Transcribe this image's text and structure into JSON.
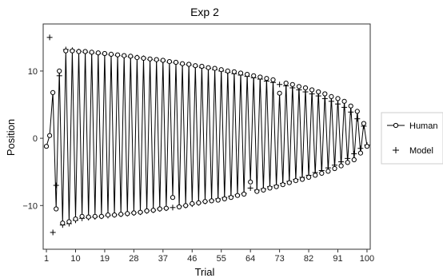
{
  "chart_data": {
    "type": "line",
    "title": "Exp 2",
    "xlabel": "Trial",
    "ylabel": "Position",
    "xlim": [
      0,
      101
    ],
    "ylim": [
      -16.5,
      17
    ],
    "x_ticks": [
      1,
      10,
      19,
      28,
      37,
      46,
      55,
      64,
      73,
      82,
      91,
      100
    ],
    "y_ticks": [
      -10,
      0,
      10
    ],
    "y_tick_labels": [
      "−10",
      "0",
      "10"
    ],
    "grid": false,
    "legend": {
      "placement": "right",
      "items": [
        {
          "label": "Human",
          "marker": "circle-line"
        },
        {
          "label": "Model",
          "marker": "plus"
        }
      ]
    },
    "series": [
      {
        "name": "Human",
        "style": "line+circle",
        "x": [
          1,
          2,
          3,
          4,
          5,
          6,
          7,
          8,
          9,
          10,
          11,
          12,
          13,
          14,
          15,
          16,
          17,
          18,
          19,
          20,
          21,
          22,
          23,
          24,
          25,
          26,
          27,
          28,
          29,
          30,
          31,
          32,
          33,
          34,
          35,
          36,
          37,
          38,
          39,
          40,
          41,
          42,
          43,
          44,
          45,
          46,
          47,
          48,
          49,
          50,
          51,
          52,
          53,
          54,
          55,
          56,
          57,
          58,
          59,
          60,
          61,
          62,
          63,
          64,
          65,
          66,
          67,
          68,
          69,
          70,
          71,
          72,
          73,
          74,
          75,
          76,
          77,
          78,
          79,
          80,
          81,
          82,
          83,
          84,
          85,
          86,
          87,
          88,
          89,
          90,
          91,
          92,
          93,
          94,
          95,
          96,
          97,
          98,
          99,
          100
        ],
        "y": [
          -1.2,
          0.4,
          6.8,
          -10.5,
          10.0,
          -12.6,
          13.0,
          -12.4,
          13.0,
          -12.0,
          12.9,
          -11.6,
          12.9,
          -11.7,
          12.8,
          -11.6,
          12.7,
          -11.6,
          12.6,
          -11.4,
          12.5,
          -11.4,
          12.4,
          -11.3,
          12.3,
          -11.2,
          12.2,
          -11.1,
          12.0,
          -11.0,
          11.9,
          -10.8,
          11.8,
          -10.7,
          11.7,
          -10.5,
          11.6,
          -10.4,
          11.4,
          -8.8,
          11.3,
          -10.2,
          11.1,
          -10.0,
          11.0,
          -9.7,
          10.8,
          -9.6,
          10.7,
          -9.4,
          10.5,
          -9.3,
          10.4,
          -9.2,
          10.2,
          -9.0,
          10.0,
          -8.8,
          9.9,
          -8.5,
          9.7,
          -8.3,
          9.5,
          -6.5,
          9.3,
          -7.9,
          9.1,
          -7.7,
          8.9,
          -7.4,
          8.7,
          -7.2,
          6.7,
          -6.9,
          8.2,
          -6.6,
          8.0,
          -6.3,
          7.7,
          -6.1,
          7.5,
          -5.8,
          7.2,
          -5.5,
          6.9,
          -5.2,
          6.6,
          -4.9,
          6.2,
          -4.5,
          5.9,
          -4.1,
          5.5,
          -3.6,
          4.8,
          -3.2,
          4.0,
          -2.2,
          2.2,
          -1.2
        ]
      },
      {
        "name": "Model",
        "style": "plus",
        "x": [
          2,
          3,
          4,
          5,
          6,
          7,
          8,
          9,
          10,
          11,
          12,
          13,
          14,
          15,
          16,
          17,
          18,
          19,
          20,
          21,
          22,
          23,
          24,
          25,
          26,
          27,
          28,
          29,
          30,
          31,
          32,
          33,
          34,
          35,
          36,
          37,
          38,
          39,
          40,
          41,
          42,
          43,
          44,
          45,
          46,
          47,
          48,
          49,
          50,
          51,
          52,
          53,
          54,
          55,
          56,
          57,
          58,
          59,
          60,
          61,
          62,
          63,
          64,
          65,
          66,
          67,
          68,
          69,
          70,
          71,
          72,
          73,
          74,
          75,
          76,
          77,
          78,
          79,
          80,
          81,
          82,
          83,
          84,
          85,
          86,
          87,
          88,
          89,
          90,
          91,
          92,
          93,
          94,
          95,
          96,
          97,
          98,
          99,
          100
        ],
        "y": [
          15.0,
          -14.0,
          -7.0,
          9.3,
          -12.9,
          13.2,
          -12.7,
          13.1,
          -12.2,
          12.9,
          -11.9,
          12.8,
          -11.8,
          12.7,
          -11.7,
          12.6,
          -11.6,
          12.5,
          -11.5,
          12.4,
          -11.4,
          12.3,
          -11.3,
          12.2,
          -11.2,
          12.1,
          -11.1,
          12.0,
          -11.0,
          11.9,
          -10.8,
          11.7,
          -10.7,
          11.6,
          -10.5,
          11.5,
          -10.4,
          11.3,
          -10.3,
          11.2,
          -10.1,
          11.0,
          -10.0,
          10.9,
          -9.8,
          10.7,
          -9.6,
          10.5,
          -9.4,
          10.4,
          -9.2,
          10.2,
          -9.0,
          10.0,
          -8.8,
          9.8,
          -8.6,
          9.6,
          -8.4,
          9.4,
          -8.2,
          9.2,
          -7.4,
          9.0,
          -7.7,
          8.8,
          -7.5,
          8.5,
          -7.2,
          8.3,
          -7.0,
          8.0,
          -6.7,
          7.8,
          -6.4,
          7.5,
          -6.1,
          7.2,
          -5.8,
          6.9,
          -5.5,
          6.6,
          -5.1,
          6.3,
          -4.8,
          5.9,
          -4.4,
          5.5,
          -4.0,
          5.1,
          -3.5,
          4.6,
          -3.0,
          3.9,
          -2.3,
          2.9,
          -1.5,
          1.8,
          -1.0
        ]
      }
    ]
  }
}
